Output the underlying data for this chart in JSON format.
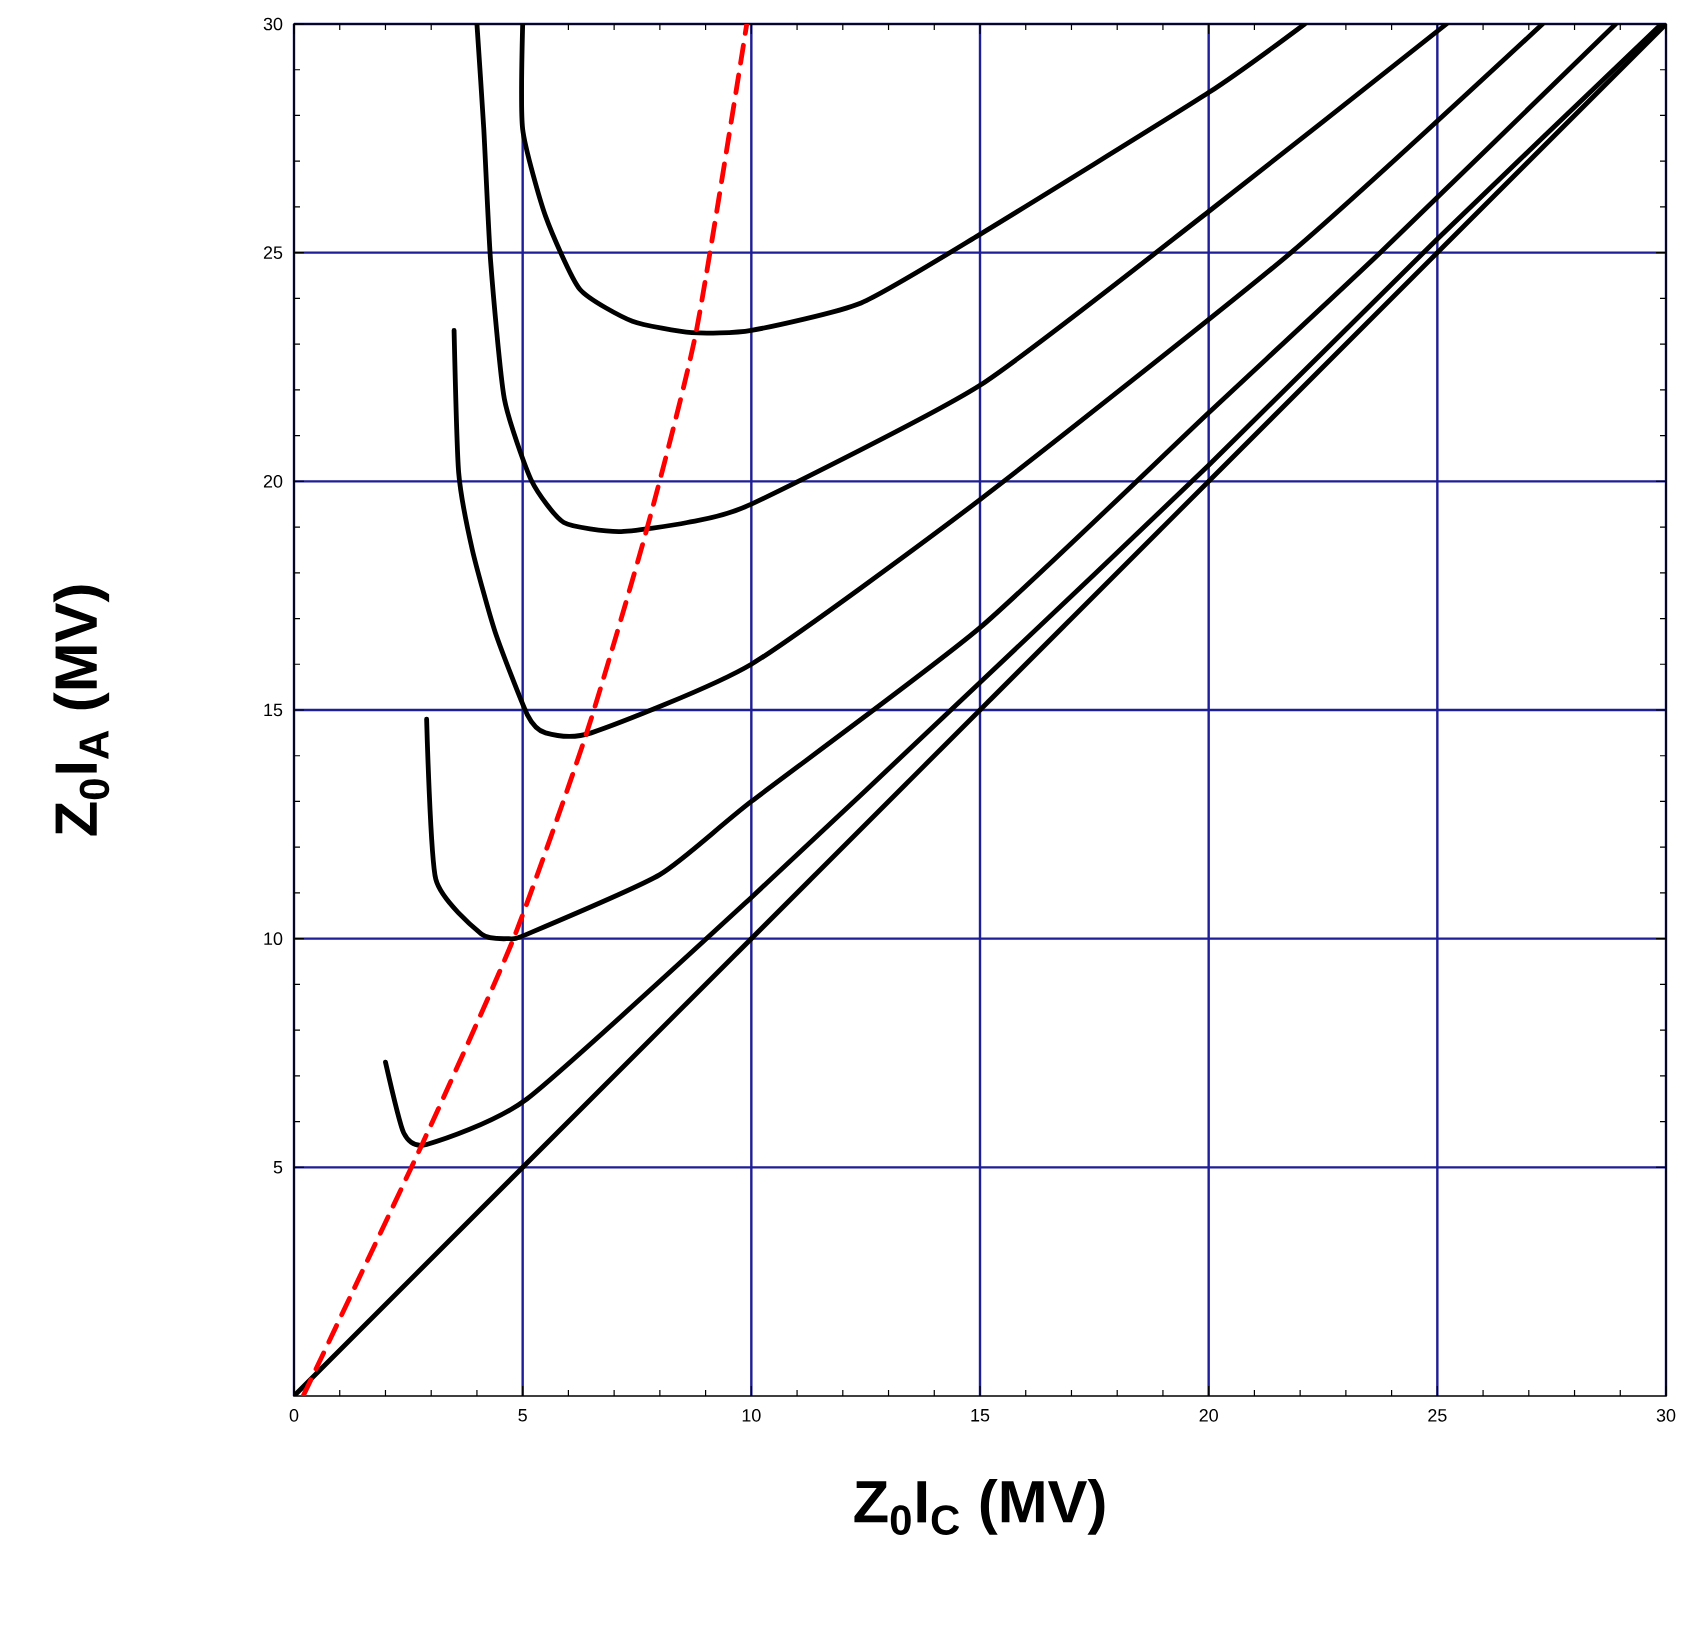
{
  "chart_data": {
    "type": "line",
    "xlabel": "Z$_{0}$I$_{C}$ (MV)",
    "ylabel": "Z$_{0}$I$_{A}$ (MV)",
    "xlim": [
      0,
      30
    ],
    "ylim": [
      0,
      30
    ],
    "xticks": [
      0,
      5,
      10,
      15,
      20,
      25,
      30
    ],
    "yticks": [
      5,
      10,
      15,
      20,
      25,
      30
    ],
    "grid": true,
    "marker": "none",
    "series": [
      {
        "color": "#000000",
        "line_style": "solid",
        "x": [
          5.0,
          5.0,
          5.5,
          6.25,
          7.4,
          8.7,
          10,
          12.4,
          15,
          20,
          22.1
        ],
        "values": [
          30,
          27.7,
          25.8,
          24.2,
          23.5,
          23.25,
          23.3,
          23.9,
          25.4,
          28.5,
          30
        ]
      },
      {
        "color": "#000000",
        "line_style": "solid",
        "x": [
          4.0,
          4.15,
          4.3,
          4.6,
          5.2,
          5.9,
          7.1,
          8.6,
          10,
          15,
          20,
          25.2
        ],
        "values": [
          30,
          27.7,
          24.8,
          21.8,
          20.0,
          19.1,
          18.9,
          19.1,
          19.5,
          22.1,
          25.9,
          30
        ]
      },
      {
        "color": "#000000",
        "line_style": "solid",
        "x": [
          3.5,
          3.6,
          3.9,
          4.4,
          5.1,
          5.5,
          6.5,
          10,
          15,
          21.8,
          27.3
        ],
        "values": [
          23.3,
          20.2,
          18.5,
          16.7,
          14.9,
          14.5,
          14.5,
          16.0,
          19.6,
          25,
          30
        ]
      },
      {
        "color": "#000000",
        "line_style": "solid",
        "x": [
          2.9,
          3.1,
          4.1,
          4.7,
          5.1,
          8.0,
          10,
          15,
          20,
          23.75,
          28.9
        ],
        "values": [
          14.8,
          11.3,
          10.1,
          10.0,
          10.1,
          11.4,
          13.0,
          16.8,
          21.5,
          25,
          30
        ]
      },
      {
        "color": "#000000",
        "line_style": "solid",
        "x": [
          2.0,
          2.4,
          2.9,
          5.1,
          10,
          15,
          20,
          25,
          29.9
        ],
        "values": [
          7.3,
          5.75,
          5.5,
          6.5,
          10.9,
          15.6,
          20.35,
          25.3,
          30
        ]
      },
      {
        "color": "#000000",
        "line_style": "solid",
        "x": [
          0,
          30
        ],
        "values": [
          0,
          30
        ]
      },
      {
        "color": "#ff0000",
        "line_style": "dashed",
        "x": [
          0.2,
          2.8,
          4.8,
          6.4,
          7.7,
          8.8,
          9.9
        ],
        "values": [
          0,
          5.5,
          10,
          14.5,
          18.9,
          23.3,
          30
        ]
      }
    ]
  }
}
